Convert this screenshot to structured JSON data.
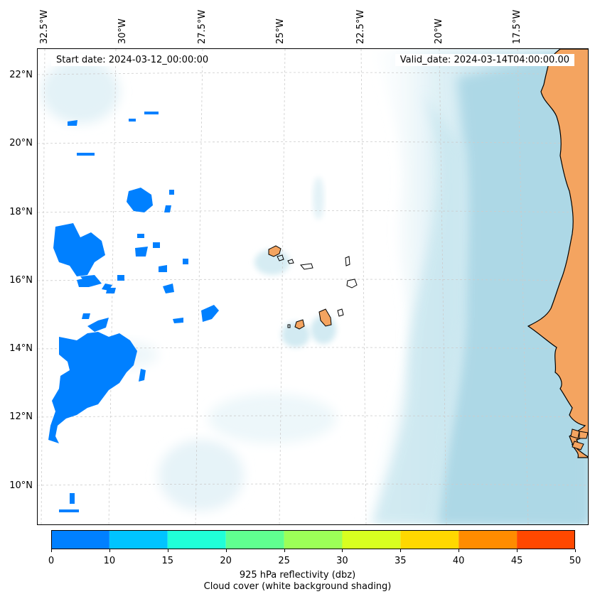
{
  "map": {
    "lon_labels": [
      "32.5°W",
      "30°W",
      "27.5°W",
      "25°W",
      "22.5°W",
      "20°W",
      "17.5°W"
    ],
    "lat_labels": [
      "22°N",
      "20°N",
      "18°N",
      "16°N",
      "14°N",
      "12°N",
      "10°N"
    ],
    "start_date": "Start date: 2024-03-12_00:00:00",
    "valid_date": "Valid_date: 2024-03-14T04:00:00.00",
    "colors": {
      "land": "#f4a460",
      "cloud_heavy": "#add8e6",
      "cloud_light": "#e0f1f6",
      "reflectivity_low": "#0080ff"
    }
  },
  "colorbar": {
    "ticks": [
      "0",
      "10",
      "15",
      "20",
      "25",
      "30",
      "35",
      "40",
      "45",
      "50"
    ],
    "colors": [
      "#0080ff",
      "#00c4ff",
      "#20ffd8",
      "#60ff90",
      "#9cff58",
      "#d8ff20",
      "#ffd800",
      "#ff8c00",
      "#ff4800"
    ],
    "label_line1": "925 hPa reflectivity (dbz)",
    "label_line2": "Cloud cover (white background shading)"
  }
}
